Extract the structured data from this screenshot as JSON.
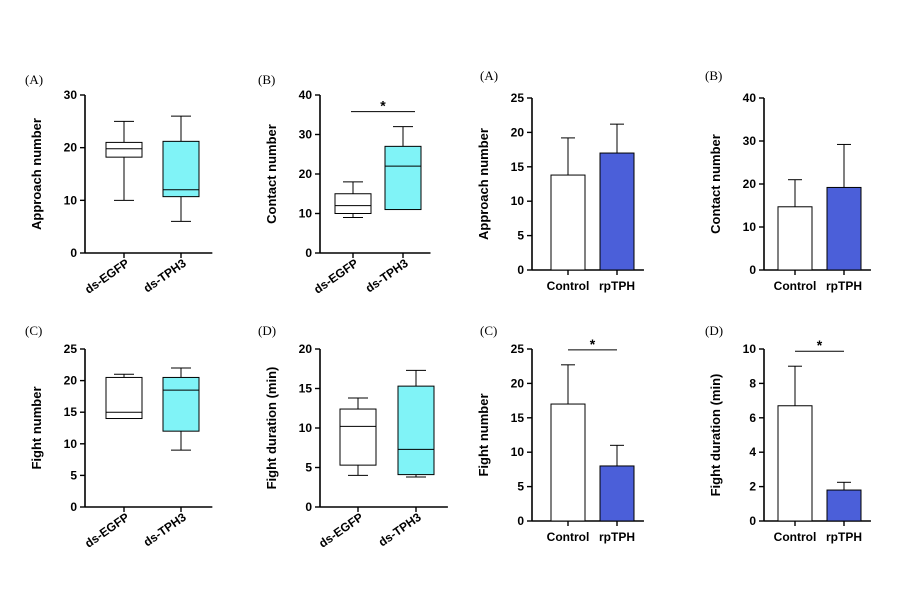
{
  "colors": {
    "box_cyan": "#80F3F7",
    "bar_blue": "#4B5FD9",
    "axis": "#000000"
  },
  "chart_data": [
    {
      "type": "box",
      "panel_label": "(A)",
      "ylabel": "Approach number",
      "ylim": [
        0,
        30
      ],
      "yticks": [
        0,
        10,
        20,
        30
      ],
      "categories": [
        "ds-EGFP",
        "ds-TPH3"
      ],
      "boxes": [
        {
          "min": 10,
          "q1": 18.2,
          "median": 19.8,
          "q3": 21,
          "max": 25,
          "fill": "#FFFFFF"
        },
        {
          "min": 6,
          "q1": 10.7,
          "median": 12,
          "q3": 21.2,
          "max": 26,
          "fill": "#80F3F7"
        }
      ],
      "significance": null,
      "grid": false,
      "legend": "none"
    },
    {
      "type": "box",
      "panel_label": "(B)",
      "ylabel": "Contact number",
      "ylim": [
        0,
        40
      ],
      "yticks": [
        0,
        10,
        20,
        30,
        40
      ],
      "categories": [
        "ds-EGFP",
        "ds-TPH3"
      ],
      "boxes": [
        {
          "min": 9,
          "q1": 10,
          "median": 12,
          "q3": 15,
          "max": 18,
          "fill": "#FFFFFF"
        },
        {
          "min": 11,
          "q1": 11,
          "median": 22,
          "q3": 27,
          "max": 32,
          "fill": "#80F3F7"
        }
      ],
      "significance": "*",
      "grid": false,
      "legend": "none"
    },
    {
      "type": "box",
      "panel_label": "(C)",
      "ylabel": "Fight number",
      "ylim": [
        0,
        25
      ],
      "yticks": [
        0,
        5,
        10,
        15,
        20,
        25
      ],
      "categories": [
        "ds-EGFP",
        "ds-TPH3"
      ],
      "boxes": [
        {
          "min": 14,
          "q1": 14,
          "median": 15,
          "q3": 20.5,
          "max": 21,
          "fill": "#FFFFFF"
        },
        {
          "min": 9,
          "q1": 12,
          "median": 18.5,
          "q3": 20.5,
          "max": 22,
          "fill": "#80F3F7"
        }
      ],
      "significance": null,
      "grid": false,
      "legend": "none"
    },
    {
      "type": "box",
      "panel_label": "(D)",
      "ylabel": "Fight duration (min)",
      "ylim": [
        0,
        20
      ],
      "yticks": [
        0,
        5,
        10,
        15,
        20
      ],
      "categories": [
        "ds-EGFP",
        "ds-TPH3"
      ],
      "boxes": [
        {
          "min": 4,
          "q1": 5.3,
          "median": 10.2,
          "q3": 12.4,
          "max": 13.8,
          "fill": "#FFFFFF"
        },
        {
          "min": 3.8,
          "q1": 4.1,
          "median": 7.3,
          "q3": 15.3,
          "max": 17.3,
          "fill": "#80F3F7"
        }
      ],
      "significance": null,
      "grid": false,
      "legend": "none"
    },
    {
      "type": "bar",
      "panel_label": "(A)",
      "ylabel": "Approach number",
      "ylim": [
        0,
        25
      ],
      "yticks": [
        0,
        5,
        10,
        15,
        20,
        25
      ],
      "categories": [
        "Control",
        "rpTPH"
      ],
      "values": [
        13.8,
        17
      ],
      "errors": [
        5.4,
        4.2
      ],
      "fills": [
        "#FFFFFF",
        "#4B5FD9"
      ],
      "significance": null,
      "grid": false,
      "legend": "none"
    },
    {
      "type": "bar",
      "panel_label": "(B)",
      "ylabel": "Contact number",
      "ylim": [
        0,
        40
      ],
      "yticks": [
        0,
        10,
        20,
        30,
        40
      ],
      "categories": [
        "Control",
        "rpTPH"
      ],
      "values": [
        14.7,
        19.2
      ],
      "errors": [
        6.3,
        10
      ],
      "fills": [
        "#FFFFFF",
        "#4B5FD9"
      ],
      "significance": null,
      "grid": false,
      "legend": "none"
    },
    {
      "type": "bar",
      "panel_label": "(C)",
      "ylabel": "Fight number",
      "ylim": [
        0,
        25
      ],
      "yticks": [
        0,
        5,
        10,
        15,
        20,
        25
      ],
      "categories": [
        "Control",
        "rpTPH"
      ],
      "values": [
        17,
        8
      ],
      "errors": [
        5.7,
        3
      ],
      "fills": [
        "#FFFFFF",
        "#4B5FD9"
      ],
      "significance": "*",
      "grid": false,
      "legend": "none"
    },
    {
      "type": "bar",
      "panel_label": "(D)",
      "ylabel": "Fight duration (min)",
      "ylim": [
        0,
        10
      ],
      "yticks": [
        0,
        2,
        4,
        6,
        8,
        10
      ],
      "categories": [
        "Control",
        "rpTPH"
      ],
      "values": [
        6.7,
        1.8
      ],
      "errors": [
        2.3,
        0.45
      ],
      "fills": [
        "#FFFFFF",
        "#4B5FD9"
      ],
      "significance": "*",
      "grid": false,
      "legend": "none"
    }
  ]
}
